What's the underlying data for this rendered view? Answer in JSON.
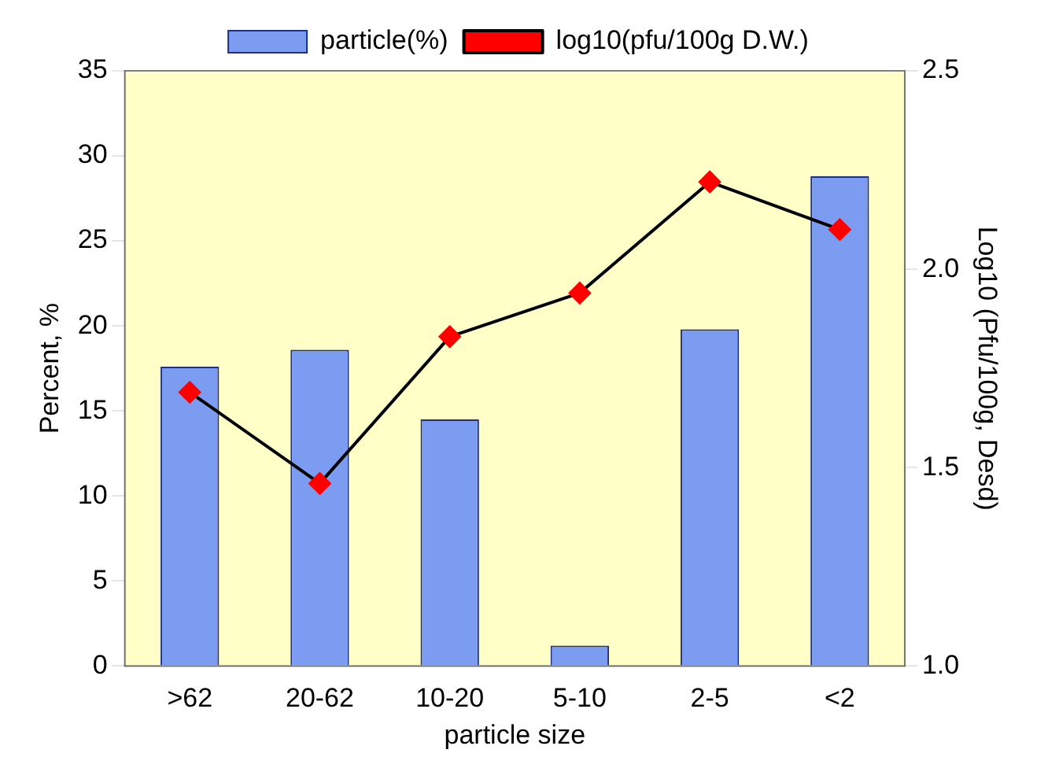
{
  "chart_data": {
    "type": "bar",
    "categories": [
      ">62",
      "20-62",
      "10-20",
      "5-10",
      "2-5",
      "<2"
    ],
    "series": [
      {
        "name": "particle(%)",
        "color": "#7b9cf0",
        "values": [
          17.6,
          18.6,
          14.5,
          1.2,
          19.8,
          28.8
        ]
      },
      {
        "name": "log10(pfu/100g D.W.)",
        "type": "line",
        "axis": "y2",
        "color": "#000000",
        "values": [
          1.69,
          1.46,
          1.83,
          1.94,
          2.22,
          2.1
        ]
      }
    ],
    "xlabel": "particle size",
    "ylabel": "Percent, %",
    "y2label": "Log10 (Pfu/100g, Desd)",
    "ylim": [
      0,
      35
    ],
    "yticks": [
      0,
      5,
      10,
      15,
      20,
      25,
      30,
      35
    ],
    "y2lim": [
      1,
      2.5
    ],
    "y2ticks": [
      {
        "value": 1,
        "label": "1.0"
      },
      {
        "value": 1.5,
        "label": "1.5"
      },
      {
        "value": 2,
        "label": "2.0"
      },
      {
        "value": 2.5,
        "label": "2.5"
      }
    ],
    "marker": "diamond",
    "legend": "top",
    "grid": false
  }
}
